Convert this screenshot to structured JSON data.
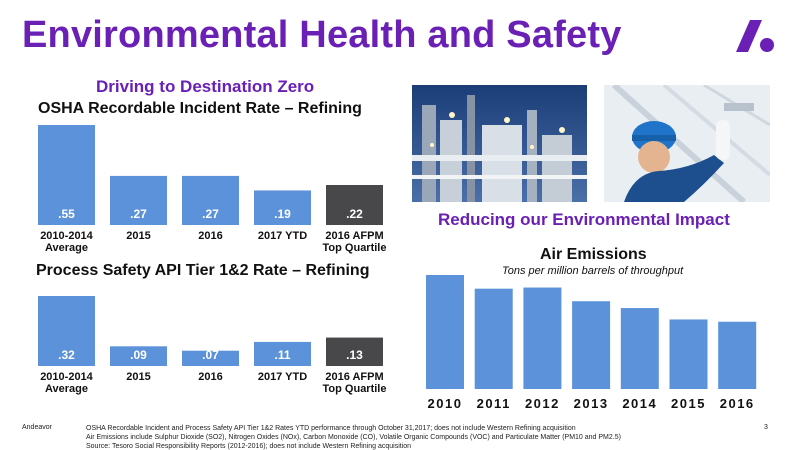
{
  "slide": {
    "title": "Environmental Health and Safety",
    "subtitle_left": "Driving to Destination Zero",
    "subtitle_right": "Reducing our Environmental Impact",
    "brand": "Andeavor",
    "page_number": "3",
    "footnotes": [
      "OSHA Recordable Incident and Process Safety API Tier 1&2 Rates YTD performance through October 31,2017; does not include Western Refining acquisition",
      "Air Emissions include Sulphur Dioxide (SO2), Nitrogen Oxides (NOx), Carbon Monoxide (CO), Volatile Organic Compounds (VOC) and Particulate Matter (PM10 and PM2.5)",
      "Source: Tesoro Social Responsibility Reports (2012-2016); does not include Western Refining acquisition"
    ],
    "colors": {
      "accent": "#6a1fb5",
      "bar_blue": "#5b92d9",
      "bar_dark": "#48484a"
    },
    "images": [
      "refinery-night-photo",
      "worker-hardhat-photo"
    ]
  },
  "chart_data": [
    {
      "type": "bar",
      "title": "OSHA Recordable Incident Rate – Refining",
      "categories": [
        "2010-2014\nAverage",
        "2015",
        "2016",
        "2017 YTD",
        "2016 AFPM\nTop Quartile"
      ],
      "values": [
        0.55,
        0.27,
        0.27,
        0.19,
        0.22
      ],
      "labels": [
        ".55",
        ".27",
        ".27",
        ".19",
        ".22"
      ],
      "highlight_last": true,
      "ylim": [
        0,
        0.55
      ]
    },
    {
      "type": "bar",
      "title": "Process Safety API Tier 1&2 Rate – Refining",
      "categories": [
        "2010-2014\nAverage",
        "2015",
        "2016",
        "2017 YTD",
        "2016 AFPM\nTop Quartile"
      ],
      "values": [
        0.32,
        0.09,
        0.07,
        0.11,
        0.13
      ],
      "labels": [
        ".32",
        ".09",
        ".07",
        ".11",
        ".13"
      ],
      "highlight_last": true,
      "ylim": [
        0,
        0.32
      ]
    },
    {
      "type": "bar",
      "title": "Air Emissions",
      "subtitle": "Tons per million barrels of throughput",
      "categories": [
        "2010",
        "2011",
        "2012",
        "2013",
        "2014",
        "2015",
        "2016"
      ],
      "values": [
        100,
        88,
        89,
        77,
        71,
        61,
        59
      ],
      "labels": [],
      "highlight_last": false,
      "ylim": [
        0,
        100
      ]
    }
  ]
}
